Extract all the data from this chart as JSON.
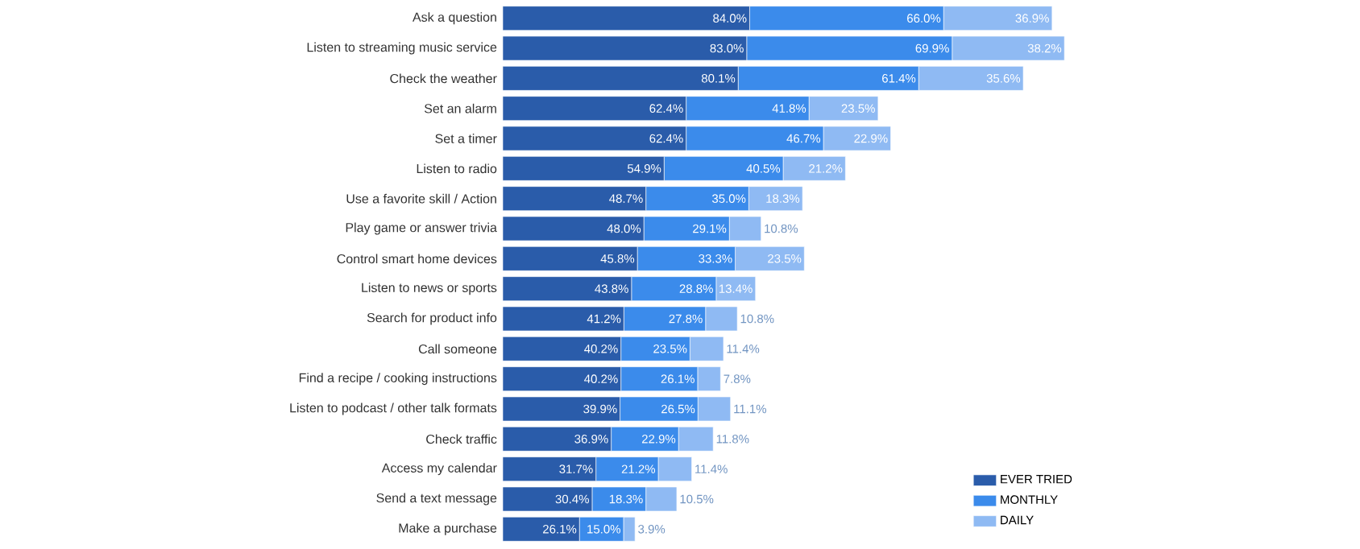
{
  "chart_data": {
    "type": "bar",
    "orientation": "horizontal",
    "stacked": true,
    "legend": "bottom right",
    "categories": [
      "Ask a question",
      "Listen to streaming music service",
      "Check the weather",
      "Set an alarm",
      "Set a timer",
      "Listen to radio",
      "Use a favorite skill / Action",
      "Play game or answer trivia",
      "Control smart home devices",
      "Listen to news or sports",
      "Search for product info",
      "Call someone",
      "Find a recipe / cooking instructions",
      "Listen to podcast / other talk formats",
      "Check traffic",
      "Access my calendar",
      "Send a text message",
      "Make a purchase"
    ],
    "series": [
      {
        "name": "EVER TRIED",
        "color": "#2a5caa",
        "values": [
          84.0,
          83.0,
          80.1,
          62.4,
          62.4,
          54.9,
          48.7,
          48.0,
          45.8,
          43.8,
          41.2,
          40.2,
          40.2,
          39.9,
          36.9,
          31.7,
          30.4,
          26.1
        ],
        "value_labels": [
          "84.0%",
          "83.0%",
          "80.1%",
          "62.4%",
          "62.4%",
          "54.9%",
          "48.7%",
          "48.0%",
          "45.8%",
          "43.8%",
          "41.2%",
          "40.2%",
          "40.2%",
          "39.9%",
          "36.9%",
          "31.7%",
          "30.4%",
          "26.1%"
        ]
      },
      {
        "name": "MONTHLY",
        "color": "#3b8beb",
        "values": [
          66.0,
          69.9,
          61.4,
          41.8,
          46.7,
          40.5,
          35.0,
          29.1,
          33.3,
          28.8,
          27.8,
          23.5,
          26.1,
          26.5,
          22.9,
          21.2,
          18.3,
          15.0
        ],
        "value_labels": [
          "66.0%",
          "69.9%",
          "61.4%",
          "41.8%",
          "46.7%",
          "40.5%",
          "35.0%",
          "29.1%",
          "33.3%",
          "28.8%",
          "27.8%",
          "23.5%",
          "26.1%",
          "26.5%",
          "22.9%",
          "21.2%",
          "18.3%",
          "15.0%"
        ]
      },
      {
        "name": "DAILY",
        "color": "#8fbaf3",
        "values": [
          36.9,
          38.2,
          35.6,
          23.5,
          22.9,
          21.2,
          18.3,
          10.8,
          23.5,
          13.4,
          10.8,
          11.4,
          7.8,
          11.1,
          11.8,
          11.4,
          10.5,
          3.9
        ],
        "value_labels": [
          "36.9%",
          "38.2%",
          "35.6%",
          "23.5%",
          "22.9%",
          "21.2%",
          "18.3%",
          "10.8%",
          "23.5%",
          "13.4%",
          "10.8%",
          "11.4%",
          "7.8%",
          "11.1%",
          "11.8%",
          "11.4%",
          "10.5%",
          "3.9%"
        ]
      }
    ]
  }
}
